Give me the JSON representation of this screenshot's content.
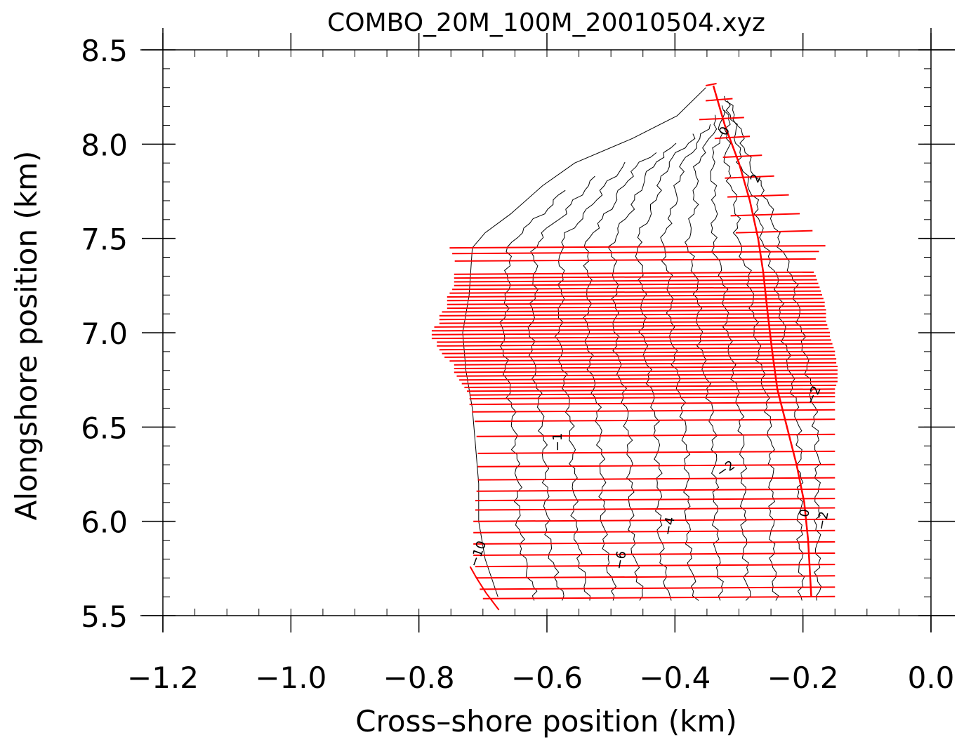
{
  "chart_data": {
    "type": "line",
    "title": "COMBO_20M_100M_20010504.xyz",
    "xlabel": "Cross–shore position (km)",
    "ylabel": "Alongshore position (km)",
    "xlim": [
      -1.2,
      0.0
    ],
    "ylim": [
      5.5,
      8.5
    ],
    "xticks": [
      -1.2,
      -1.0,
      -0.8,
      -0.6,
      -0.4,
      -0.2,
      0.0
    ],
    "yticks": [
      5.5,
      6.0,
      6.5,
      7.0,
      7.5,
      8.0,
      8.5
    ],
    "xtick_labels": [
      "−1.2",
      "−1.0",
      "−0.8",
      "−0.6",
      "−0.4",
      "−0.2",
      "0.0"
    ],
    "ytick_labels": [
      "5.5",
      "6.0",
      "6.5",
      "7.0",
      "7.5",
      "8.0",
      "8.5"
    ],
    "grid": false,
    "colors": {
      "survey_lines": "#ff0000",
      "contours": "#000000",
      "axes": "#000000"
    },
    "shoreline": [
      [
        -0.34,
        8.31
      ],
      [
        -0.322,
        8.1
      ],
      [
        -0.3,
        7.9
      ],
      [
        -0.283,
        7.7
      ],
      [
        -0.27,
        7.5
      ],
      [
        -0.262,
        7.32
      ],
      [
        -0.255,
        7.1
      ],
      [
        -0.248,
        6.9
      ],
      [
        -0.24,
        6.7
      ],
      [
        -0.225,
        6.5
      ],
      [
        -0.21,
        6.3
      ],
      [
        -0.198,
        6.1
      ],
      [
        -0.192,
        5.9
      ],
      [
        -0.187,
        5.6
      ]
    ],
    "survey_lines": {
      "y_values": [
        8.31,
        8.23,
        8.13,
        8.03,
        7.93,
        7.82,
        7.72,
        7.62,
        7.53,
        7.45,
        7.42,
        7.38,
        7.31,
        7.29,
        7.27,
        7.25,
        7.23,
        7.21,
        7.19,
        7.17,
        7.15,
        7.13,
        7.11,
        7.09,
        7.07,
        7.05,
        7.03,
        7.01,
        6.99,
        6.97,
        6.95,
        6.93,
        6.91,
        6.89,
        6.87,
        6.85,
        6.83,
        6.81,
        6.79,
        6.77,
        6.75,
        6.73,
        6.71,
        6.69,
        6.67,
        6.65,
        6.62,
        6.58,
        6.53,
        6.45,
        6.36,
        6.29,
        6.22,
        6.16,
        6.11,
        6.06,
        6.0,
        5.94,
        5.88,
        5.82,
        5.76,
        5.7,
        5.64,
        5.59
      ],
      "x_start": [
        -0.352,
        -0.352,
        -0.362,
        -0.338,
        -0.325,
        -0.322,
        -0.318,
        -0.313,
        -0.305,
        -0.752,
        -0.748,
        -0.744,
        -0.745,
        -0.745,
        -0.745,
        -0.745,
        -0.748,
        -0.752,
        -0.756,
        -0.756,
        -0.756,
        -0.756,
        -0.764,
        -0.768,
        -0.768,
        -0.768,
        -0.776,
        -0.78,
        -0.78,
        -0.78,
        -0.772,
        -0.772,
        -0.768,
        -0.764,
        -0.76,
        -0.752,
        -0.745,
        -0.745,
        -0.745,
        -0.741,
        -0.737,
        -0.733,
        -0.729,
        -0.725,
        -0.721,
        -0.721,
        -0.721,
        -0.717,
        -0.713,
        -0.71,
        -0.708,
        -0.708,
        -0.708,
        -0.71,
        -0.712,
        -0.712,
        -0.715,
        -0.715,
        -0.715,
        -0.715,
        -0.712,
        -0.71,
        -0.705,
        -0.7
      ],
      "x_end": [
        -0.335,
        -0.31,
        -0.292,
        -0.283,
        -0.264,
        -0.245,
        -0.222,
        -0.205,
        -0.185,
        -0.165,
        -0.175,
        -0.18,
        -0.183,
        -0.18,
        -0.178,
        -0.176,
        -0.174,
        -0.172,
        -0.17,
        -0.168,
        -0.166,
        -0.166,
        -0.164,
        -0.164,
        -0.164,
        -0.164,
        -0.162,
        -0.16,
        -0.158,
        -0.158,
        -0.156,
        -0.154,
        -0.152,
        -0.15,
        -0.15,
        -0.148,
        -0.148,
        -0.146,
        -0.146,
        -0.146,
        -0.146,
        -0.146,
        -0.148,
        -0.15,
        -0.15,
        -0.15,
        -0.15,
        -0.15,
        -0.15,
        -0.15,
        -0.15,
        -0.15,
        -0.15,
        -0.15,
        -0.15,
        -0.15,
        -0.15,
        -0.15,
        -0.15,
        -0.15,
        -0.15,
        -0.15,
        -0.15,
        -0.15
      ]
    },
    "contour_labels": [
      {
        "text": "0",
        "x": -0.317,
        "y": 8.06,
        "rotation": -65
      },
      {
        "text": "2",
        "x": -0.268,
        "y": 7.81,
        "rotation": -65
      },
      {
        "text": "−2",
        "x": -0.178,
        "y": 6.66,
        "rotation": -65
      },
      {
        "text": "−1",
        "x": -0.577,
        "y": 6.42,
        "rotation": -90
      },
      {
        "text": "−2",
        "x": -0.317,
        "y": 6.26,
        "rotation": -35
      },
      {
        "text": "−4",
        "x": -0.403,
        "y": 5.97,
        "rotation": -80
      },
      {
        "text": "−6",
        "x": -0.479,
        "y": 5.79,
        "rotation": -80
      },
      {
        "text": "−10",
        "x": -0.702,
        "y": 5.82,
        "rotation": -70
      },
      {
        "text": "0",
        "x": -0.191,
        "y": 6.04,
        "rotation": -80
      },
      {
        "text": "−2",
        "x": -0.163,
        "y": 6.0,
        "rotation": -80
      }
    ]
  }
}
